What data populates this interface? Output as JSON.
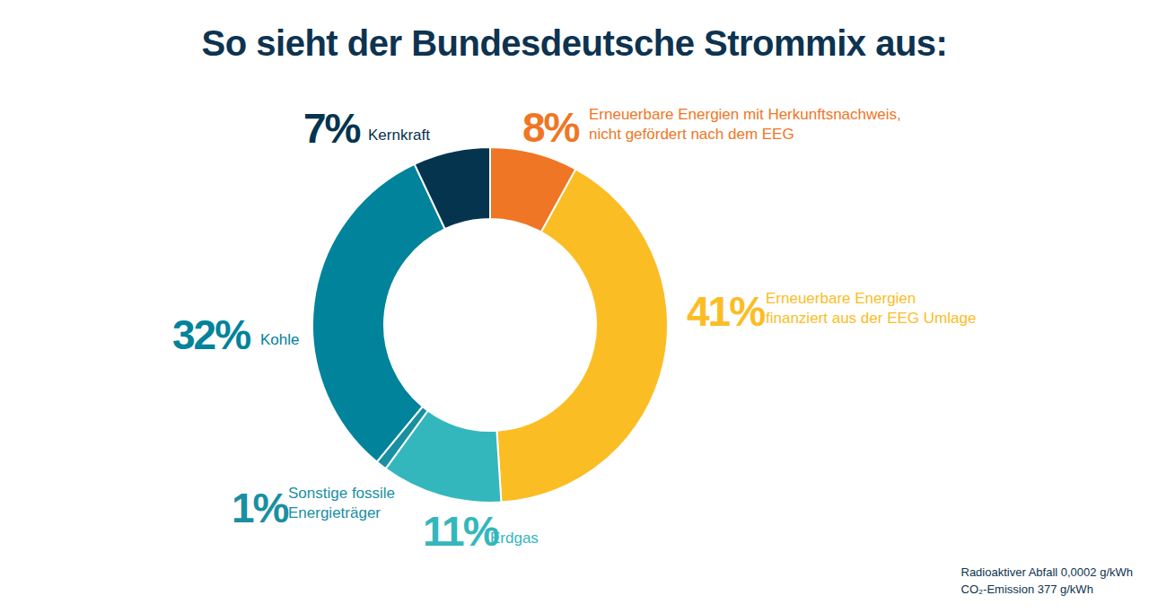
{
  "chart_data": {
    "type": "pie",
    "title": "So sieht der Bundesdeutsche Strommix aus:",
    "categories": [
      "Erneuerbare Energien mit Herkunftsnachweis,\nnicht gefördert nach dem EEG",
      "Erneuerbare Energien\nfinanziert aus der EEG Umlage",
      "Erdgas",
      "Sonstige fossile\nEnergieträger",
      "Kohle",
      "Kernkraft"
    ],
    "values": [
      8,
      41,
      11,
      1,
      32,
      7
    ],
    "value_labels": [
      "8%",
      "41%",
      "11%",
      "1%",
      "32%",
      "7%"
    ],
    "colors": [
      "#ef7624",
      "#fbbd24",
      "#33b7bd",
      "#1a8fa2",
      "#00839b",
      "#05344f"
    ],
    "data_labels": true,
    "notes": [
      "Radioaktiver Abfall 0,0002 g/kWh",
      "CO₂-Emission 377 g/kWh"
    ]
  }
}
